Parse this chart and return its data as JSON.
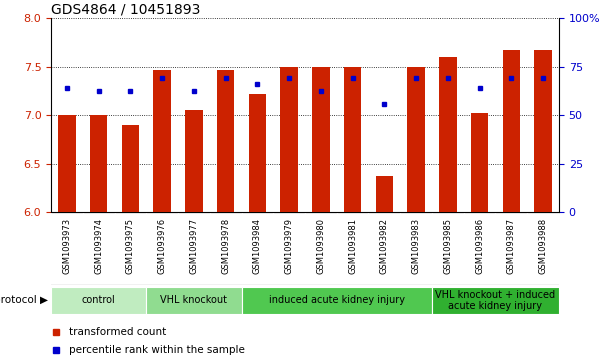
{
  "title": "GDS4864 / 10451893",
  "samples": [
    "GSM1093973",
    "GSM1093974",
    "GSM1093975",
    "GSM1093976",
    "GSM1093977",
    "GSM1093978",
    "GSM1093984",
    "GSM1093979",
    "GSM1093980",
    "GSM1093981",
    "GSM1093982",
    "GSM1093983",
    "GSM1093985",
    "GSM1093986",
    "GSM1093987",
    "GSM1093988"
  ],
  "red_values": [
    7.0,
    7.0,
    6.9,
    7.47,
    7.05,
    7.47,
    7.22,
    7.5,
    7.5,
    7.5,
    6.37,
    7.5,
    7.6,
    7.02,
    7.67,
    7.67
  ],
  "blue_values": [
    7.28,
    7.25,
    7.25,
    7.38,
    7.25,
    7.38,
    7.32,
    7.38,
    7.25,
    7.38,
    7.12,
    7.38,
    7.38,
    7.28,
    7.38,
    7.38
  ],
  "ylim": [
    6.0,
    8.0
  ],
  "yticks_left": [
    6.0,
    6.5,
    7.0,
    7.5,
    8.0
  ],
  "yticks_right": [
    0,
    25,
    50,
    75,
    100
  ],
  "groups": [
    {
      "label": "control",
      "count": 3,
      "color": "#c0ecc0"
    },
    {
      "label": "VHL knockout",
      "count": 3,
      "color": "#90dc90"
    },
    {
      "label": "induced acute kidney injury",
      "count": 6,
      "color": "#50c850"
    },
    {
      "label": "VHL knockout + induced\nacute kidney injury",
      "count": 4,
      "color": "#30b030"
    }
  ],
  "red_color": "#cc2200",
  "blue_color": "#0000cc",
  "label_bg": "#d0d0d0",
  "bar_width": 0.55,
  "fig_width": 6.01,
  "fig_height": 3.63
}
